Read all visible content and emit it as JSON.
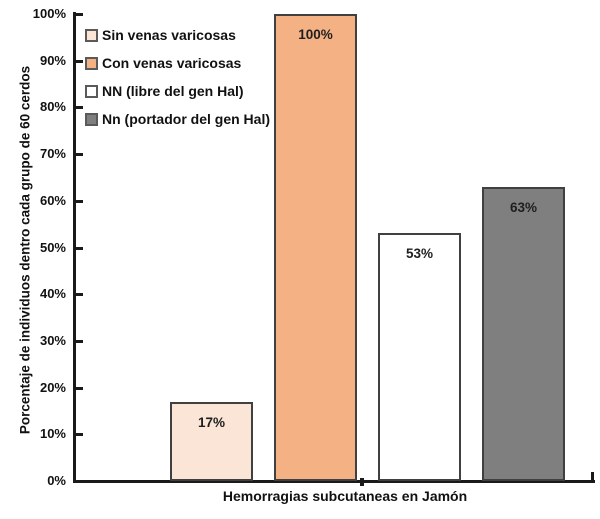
{
  "chart_data": {
    "type": "bar",
    "title": "",
    "xlabel": "Hemorragias subcutaneas en Jamón",
    "ylabel": "Porcentaje de individuos dentro cada grupo de 60 cerdos",
    "ylim": [
      0,
      100
    ],
    "ytick_step": 10,
    "yticks": [
      "0%",
      "10%",
      "20%",
      "30%",
      "40%",
      "50%",
      "60%",
      "70%",
      "80%",
      "90%",
      "100%"
    ],
    "grid": false,
    "legend_position": "top-left-inside",
    "categories": [
      "Hemorragias subcutaneas en Jamón"
    ],
    "series": [
      {
        "name": "Sin venas varicosas",
        "values": [
          17
        ],
        "data_label": "17%",
        "fill": "#FBE5D6"
      },
      {
        "name": "Con venas varicosas",
        "values": [
          100
        ],
        "data_label": "100%",
        "fill": "#F4B183"
      },
      {
        "name": "NN (libre del gen Hal)",
        "values": [
          53
        ],
        "data_label": "53%",
        "fill": "#FFFFFF"
      },
      {
        "name": "Nn (portador del gen Hal)",
        "values": [
          63
        ],
        "data_label": "63%",
        "fill": "#7F7F7F"
      }
    ],
    "colors": {
      "bar_border": "#404040",
      "axis": "#1A1A1A",
      "text": "#111111",
      "background": "#FFFFFF"
    }
  }
}
